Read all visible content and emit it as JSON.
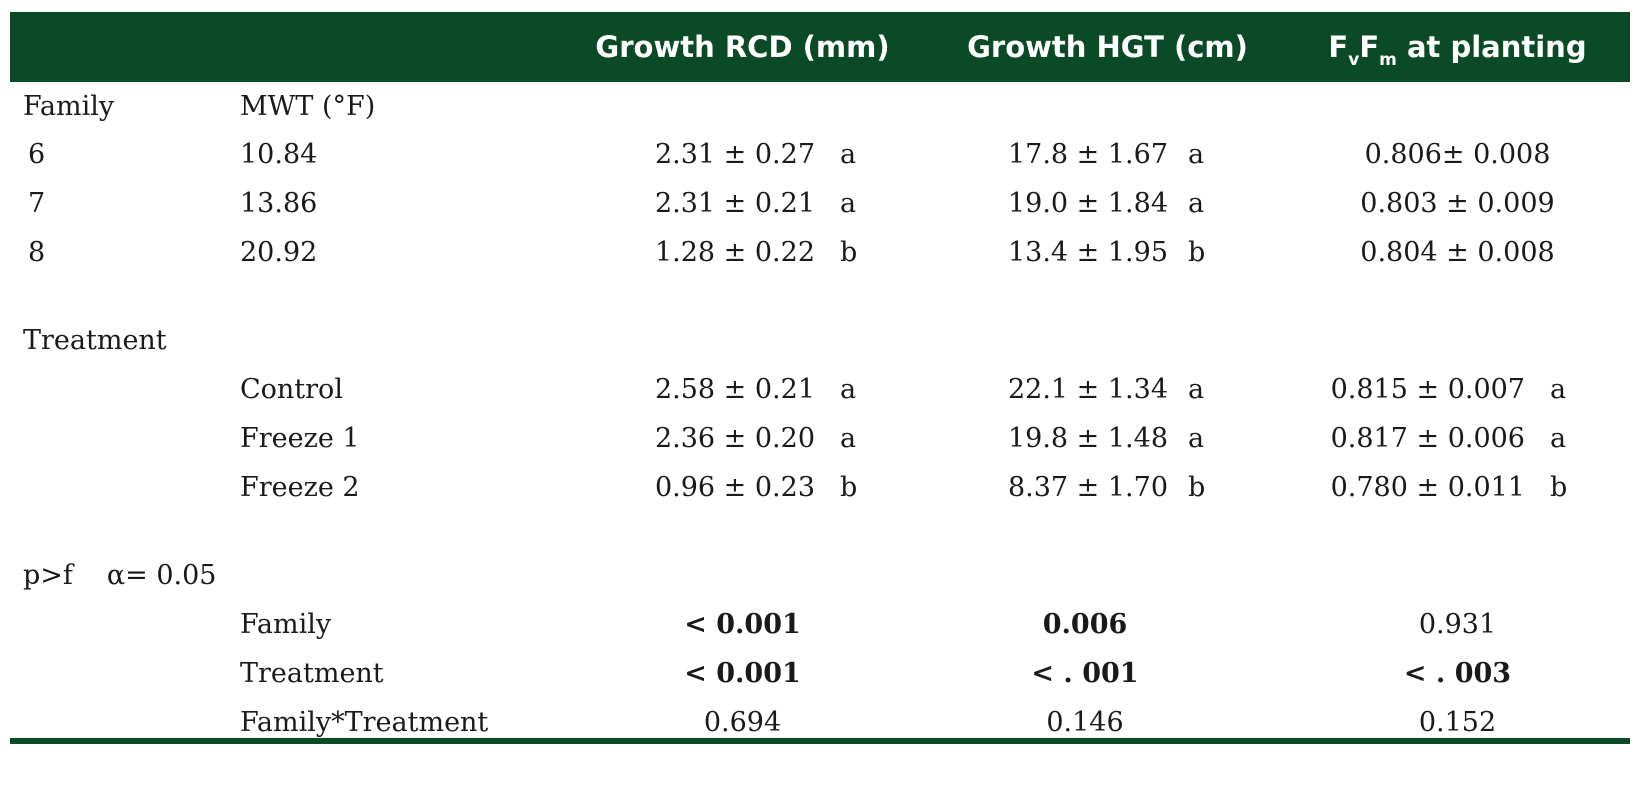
{
  "header": {
    "col1": "",
    "col2": "",
    "col3": "Growth RCD (mm)",
    "col4": "Growth HGT (cm)",
    "col5_prefix": "F",
    "col5_sub1": "v",
    "col5_mid": "F",
    "col5_sub2": "m",
    "col5_suffix": " at planting"
  },
  "family_section": {
    "label": "Family",
    "mwt_label": "MWT (°F)",
    "rows": [
      {
        "family": "6",
        "mwt": "10.84",
        "rcd": "2.31 ± 0.27",
        "rcd_letter": "a",
        "hgt": "17.8 ± 1.67",
        "hgt_letter": "a",
        "fvfm": "0.806± 0.008"
      },
      {
        "family": "7",
        "mwt": "13.86",
        "rcd": "2.31 ± 0.21",
        "rcd_letter": "a",
        "hgt": "19.0 ± 1.84",
        "hgt_letter": "a",
        "fvfm": "0.803 ± 0.009"
      },
      {
        "family": "8",
        "mwt": "20.92",
        "rcd": "1.28 ± 0.22",
        "rcd_letter": "b",
        "hgt": "13.4 ± 1.95",
        "hgt_letter": "b",
        "fvfm": "0.804 ± 0.008"
      }
    ]
  },
  "treatment_section": {
    "label": "Treatment",
    "rows": [
      {
        "name": "Control",
        "rcd": "2.58 ± 0.21",
        "rcd_letter": "a",
        "hgt": "22.1 ± 1.34",
        "hgt_letter": "a",
        "fvfm": "0.815 ± 0.007",
        "fvfm_letter": "a"
      },
      {
        "name": "Freeze 1",
        "rcd": "2.36 ± 0.20",
        "rcd_letter": "a",
        "hgt": "19.8 ± 1.48",
        "hgt_letter": "a",
        "fvfm": "0.817 ± 0.006",
        "fvfm_letter": "a"
      },
      {
        "name": "Freeze 2",
        "rcd": "0.96 ± 0.23",
        "rcd_letter": "b",
        "hgt": "8.37 ± 1.70",
        "hgt_letter": "b",
        "fvfm": "0.780 ± 0.011",
        "fvfm_letter": "b"
      }
    ]
  },
  "pvalue_section": {
    "label": "p>f",
    "alpha": "α= 0.05",
    "rows": [
      {
        "name": "Family",
        "rcd": "< 0.001",
        "rcd_bold": true,
        "hgt": "0.006",
        "hgt_bold": true,
        "fvfm": "0.931",
        "fvfm_bold": false
      },
      {
        "name": "Treatment",
        "rcd": "< 0.001",
        "rcd_bold": true,
        "hgt": "< . 001",
        "hgt_bold": true,
        "fvfm": "< . 003",
        "fvfm_bold": true
      },
      {
        "name": "Family*Treatment",
        "rcd": "0.694",
        "rcd_bold": false,
        "hgt": "0.146",
        "hgt_bold": false,
        "fvfm": "0.152",
        "fvfm_bold": false
      }
    ]
  },
  "colors": {
    "header_bg": "#0a4a27",
    "header_text": "#ffffff",
    "rule": "#0a4a27"
  }
}
